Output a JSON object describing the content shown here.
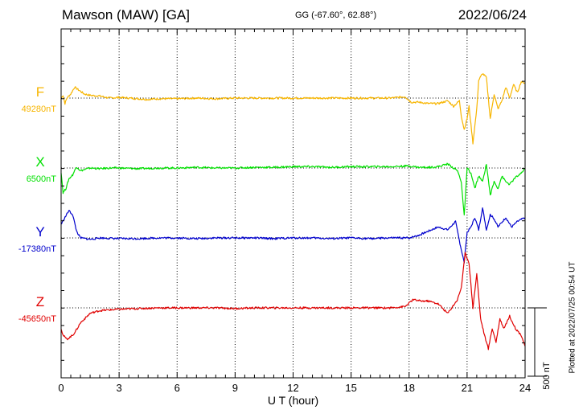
{
  "header": {
    "station": "Mawson (MAW)  [GA]",
    "coords": "GG (-67.60°,  62.88°)",
    "date": "2022/06/24"
  },
  "footer": {
    "plotted": "Plotted at 2022/07/25 00:54 UT"
  },
  "colors": {
    "F": "#f7b500",
    "X": "#00e000",
    "Y": "#0000cc",
    "Z": "#e00000",
    "axis": "#000000"
  },
  "chart_data": {
    "type": "line",
    "xlabel": "U T (hour)",
    "xlim": [
      0,
      24
    ],
    "xticks": [
      0,
      3,
      6,
      9,
      12,
      15,
      18,
      21,
      24
    ],
    "grid": true,
    "scale_bar": "500 nT",
    "scale_nT": 500,
    "series": [
      {
        "name": "F",
        "baseline_label": "49280nT",
        "points": [
          [
            0,
            0
          ],
          [
            0.1,
            20
          ],
          [
            0.2,
            -40
          ],
          [
            0.3,
            0
          ],
          [
            0.5,
            30
          ],
          [
            0.7,
            80
          ],
          [
            0.9,
            60
          ],
          [
            1.2,
            30
          ],
          [
            1.5,
            20
          ],
          [
            2,
            15
          ],
          [
            2.5,
            0
          ],
          [
            3,
            5
          ],
          [
            3.5,
            0
          ],
          [
            4,
            -5
          ],
          [
            4.5,
            -10
          ],
          [
            5,
            -5
          ],
          [
            6,
            -5
          ],
          [
            7,
            0
          ],
          [
            8,
            -5
          ],
          [
            9,
            0
          ],
          [
            10,
            0
          ],
          [
            11,
            0
          ],
          [
            12,
            0
          ],
          [
            13,
            0
          ],
          [
            14,
            0
          ],
          [
            15,
            0
          ],
          [
            16,
            0
          ],
          [
            17,
            0
          ],
          [
            17.8,
            10
          ],
          [
            18.1,
            -30
          ],
          [
            18.5,
            -30
          ],
          [
            19,
            -40
          ],
          [
            19.5,
            -40
          ],
          [
            20,
            -20
          ],
          [
            20.3,
            -60
          ],
          [
            20.6,
            -20
          ],
          [
            20.7,
            -130
          ],
          [
            20.85,
            -230
          ],
          [
            21,
            -150
          ],
          [
            21.1,
            -60
          ],
          [
            21.3,
            -330
          ],
          [
            21.5,
            -80
          ],
          [
            21.6,
            130
          ],
          [
            21.8,
            180
          ],
          [
            22,
            150
          ],
          [
            22.2,
            -150
          ],
          [
            22.4,
            30
          ],
          [
            22.6,
            -80
          ],
          [
            22.8,
            -20
          ],
          [
            23,
            80
          ],
          [
            23.2,
            0
          ],
          [
            23.4,
            100
          ],
          [
            23.6,
            40
          ],
          [
            23.8,
            120
          ],
          [
            24,
            110
          ]
        ]
      },
      {
        "name": "X",
        "baseline_label": "6500nT",
        "points": [
          [
            0,
            -30
          ],
          [
            0.1,
            -180
          ],
          [
            0.25,
            -150
          ],
          [
            0.4,
            -80
          ],
          [
            0.6,
            -50
          ],
          [
            0.8,
            10
          ],
          [
            1,
            -20
          ],
          [
            1.5,
            0
          ],
          [
            2,
            -5
          ],
          [
            2.5,
            0
          ],
          [
            3,
            0
          ],
          [
            4,
            -5
          ],
          [
            5,
            0
          ],
          [
            6,
            0
          ],
          [
            7,
            5
          ],
          [
            8,
            0
          ],
          [
            9,
            0
          ],
          [
            10,
            5
          ],
          [
            11,
            5
          ],
          [
            12,
            10
          ],
          [
            13,
            10
          ],
          [
            14,
            5
          ],
          [
            15,
            10
          ],
          [
            16,
            10
          ],
          [
            17,
            10
          ],
          [
            18,
            15
          ],
          [
            18.5,
            5
          ],
          [
            19,
            5
          ],
          [
            19.5,
            10
          ],
          [
            20,
            30
          ],
          [
            20.3,
            0
          ],
          [
            20.5,
            -20
          ],
          [
            20.7,
            -100
          ],
          [
            20.85,
            -350
          ],
          [
            21,
            0
          ],
          [
            21.2,
            -40
          ],
          [
            21.4,
            -150
          ],
          [
            21.6,
            -60
          ],
          [
            21.8,
            -100
          ],
          [
            22,
            30
          ],
          [
            22.2,
            -200
          ],
          [
            22.4,
            -100
          ],
          [
            22.6,
            -150
          ],
          [
            22.8,
            -60
          ],
          [
            23,
            -100
          ],
          [
            23.2,
            -120
          ],
          [
            23.5,
            -70
          ],
          [
            23.8,
            -40
          ],
          [
            24,
            0
          ]
        ]
      },
      {
        "name": "Y",
        "baseline_label": "-17380nT",
        "points": [
          [
            0,
            100
          ],
          [
            0.2,
            150
          ],
          [
            0.4,
            200
          ],
          [
            0.6,
            170
          ],
          [
            0.8,
            50
          ],
          [
            1,
            0
          ],
          [
            1.5,
            -10
          ],
          [
            2,
            0
          ],
          [
            3,
            -5
          ],
          [
            4,
            -5
          ],
          [
            5,
            0
          ],
          [
            6,
            0
          ],
          [
            7,
            -5
          ],
          [
            8,
            0
          ],
          [
            9,
            0
          ],
          [
            10,
            0
          ],
          [
            11,
            -5
          ],
          [
            12,
            0
          ],
          [
            13,
            0
          ],
          [
            14,
            -5
          ],
          [
            15,
            0
          ],
          [
            16,
            -5
          ],
          [
            17,
            0
          ],
          [
            18,
            0
          ],
          [
            18.5,
            20
          ],
          [
            19,
            50
          ],
          [
            19.5,
            80
          ],
          [
            20,
            60
          ],
          [
            20.4,
            120
          ],
          [
            20.6,
            -20
          ],
          [
            20.85,
            -180
          ],
          [
            21,
            40
          ],
          [
            21.2,
            80
          ],
          [
            21.4,
            150
          ],
          [
            21.6,
            60
          ],
          [
            21.8,
            220
          ],
          [
            22,
            60
          ],
          [
            22.2,
            170
          ],
          [
            22.4,
            140
          ],
          [
            22.6,
            80
          ],
          [
            23,
            150
          ],
          [
            23.3,
            80
          ],
          [
            23.6,
            120
          ],
          [
            24,
            150
          ]
        ]
      },
      {
        "name": "Z",
        "baseline_label": "-45650nT",
        "points": [
          [
            0,
            -150
          ],
          [
            0.1,
            -200
          ],
          [
            0.3,
            -230
          ],
          [
            0.6,
            -200
          ],
          [
            0.8,
            -160
          ],
          [
            1,
            -110
          ],
          [
            1.5,
            -40
          ],
          [
            2,
            -20
          ],
          [
            3,
            -10
          ],
          [
            4,
            -5
          ],
          [
            5,
            0
          ],
          [
            6,
            0
          ],
          [
            7,
            0
          ],
          [
            8,
            0
          ],
          [
            9,
            -5
          ],
          [
            10,
            0
          ],
          [
            11,
            0
          ],
          [
            12,
            0
          ],
          [
            13,
            0
          ],
          [
            14,
            0
          ],
          [
            15,
            0
          ],
          [
            16,
            0
          ],
          [
            17,
            0
          ],
          [
            17.8,
            10
          ],
          [
            18.2,
            60
          ],
          [
            18.6,
            50
          ],
          [
            19,
            50
          ],
          [
            19.5,
            30
          ],
          [
            20,
            -40
          ],
          [
            20.5,
            60
          ],
          [
            20.7,
            150
          ],
          [
            20.9,
            400
          ],
          [
            21.1,
            330
          ],
          [
            21.3,
            0
          ],
          [
            21.5,
            250
          ],
          [
            21.7,
            -80
          ],
          [
            21.9,
            -200
          ],
          [
            22.1,
            -300
          ],
          [
            22.3,
            -150
          ],
          [
            22.5,
            -250
          ],
          [
            22.7,
            -80
          ],
          [
            22.9,
            -150
          ],
          [
            23.2,
            -60
          ],
          [
            23.5,
            -150
          ],
          [
            23.8,
            -200
          ],
          [
            24,
            -280
          ]
        ]
      }
    ]
  }
}
